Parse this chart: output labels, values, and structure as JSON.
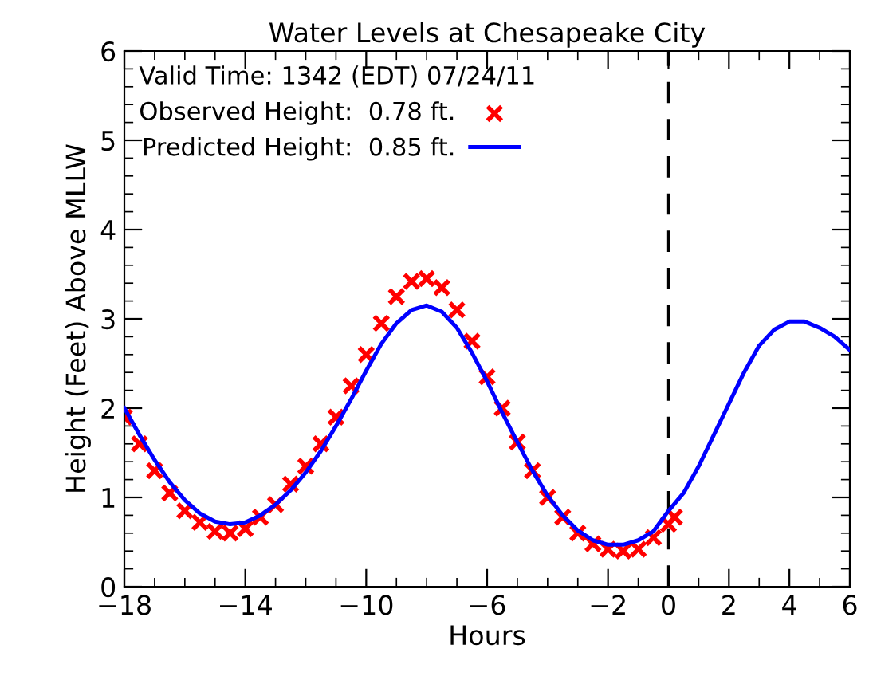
{
  "chart_data": {
    "type": "line",
    "title": "Water Levels at Chesapeake City",
    "xlabel": "Hours",
    "ylabel": "Height (Feet) Above MLLW",
    "legend_title": "Valid Time: 1342 (EDT) 07/24/11",
    "legend": "top left",
    "grid": false,
    "xlim": [
      -18,
      6
    ],
    "xticks": [
      -18,
      -14,
      -10,
      -6,
      -2,
      0,
      2,
      4,
      6
    ],
    "ylim": [
      0,
      6
    ],
    "yticks": [
      0,
      1,
      2,
      3,
      4,
      5,
      6
    ],
    "ref_lines": [
      {
        "axis": "x",
        "value": 0,
        "color": "#000000",
        "line_style": "dashed"
      }
    ],
    "series": [
      {
        "name": "Observed Height:  0.78 ft.",
        "type": "scatter",
        "marker": "cross",
        "color": "#ff0000",
        "x": [
          -18,
          -17.5,
          -17,
          -16.5,
          -16,
          -15.5,
          -15,
          -14.5,
          -14,
          -13.5,
          -13,
          -12.5,
          -12,
          -11.5,
          -11,
          -10.5,
          -10,
          -9.5,
          -9,
          -8.5,
          -8,
          -7.5,
          -7,
          -6.5,
          -6,
          -5.5,
          -5,
          -4.5,
          -4,
          -3.5,
          -3,
          -2.5,
          -2,
          -1.5,
          -1,
          -0.5,
          0,
          0.2
        ],
        "values": [
          1.9,
          1.6,
          1.3,
          1.05,
          0.85,
          0.72,
          0.62,
          0.6,
          0.65,
          0.78,
          0.92,
          1.15,
          1.35,
          1.6,
          1.9,
          2.25,
          2.6,
          2.95,
          3.25,
          3.42,
          3.45,
          3.35,
          3.1,
          2.75,
          2.35,
          2.0,
          1.62,
          1.3,
          1.0,
          0.78,
          0.6,
          0.48,
          0.42,
          0.4,
          0.42,
          0.55,
          0.7,
          0.78
        ]
      },
      {
        "name": "Predicted Height:  0.85 ft.",
        "line_style": "solid",
        "color": "#0000ff",
        "x": [
          -18,
          -17.5,
          -17,
          -16.5,
          -16,
          -15.5,
          -15,
          -14.5,
          -14,
          -13.5,
          -13,
          -12.5,
          -12,
          -11.5,
          -11,
          -10.5,
          -10,
          -9.5,
          -9,
          -8.5,
          -8,
          -7.5,
          -7,
          -6.5,
          -6,
          -5.5,
          -5,
          -4.5,
          -4,
          -3.5,
          -3,
          -2.5,
          -2,
          -1.5,
          -1,
          -0.5,
          0,
          0.5,
          1,
          1.5,
          2,
          2.5,
          3,
          3.5,
          4,
          4.5,
          5,
          5.5,
          6
        ],
        "values": [
          2.0,
          1.7,
          1.42,
          1.17,
          0.97,
          0.82,
          0.73,
          0.7,
          0.72,
          0.8,
          0.92,
          1.08,
          1.28,
          1.52,
          1.8,
          2.1,
          2.42,
          2.72,
          2.95,
          3.1,
          3.15,
          3.08,
          2.9,
          2.62,
          2.3,
          1.95,
          1.62,
          1.3,
          1.02,
          0.8,
          0.63,
          0.52,
          0.47,
          0.47,
          0.52,
          0.62,
          0.85,
          1.05,
          1.35,
          1.7,
          2.05,
          2.4,
          2.7,
          2.88,
          2.97,
          2.97,
          2.9,
          2.8,
          2.65
        ]
      }
    ]
  }
}
